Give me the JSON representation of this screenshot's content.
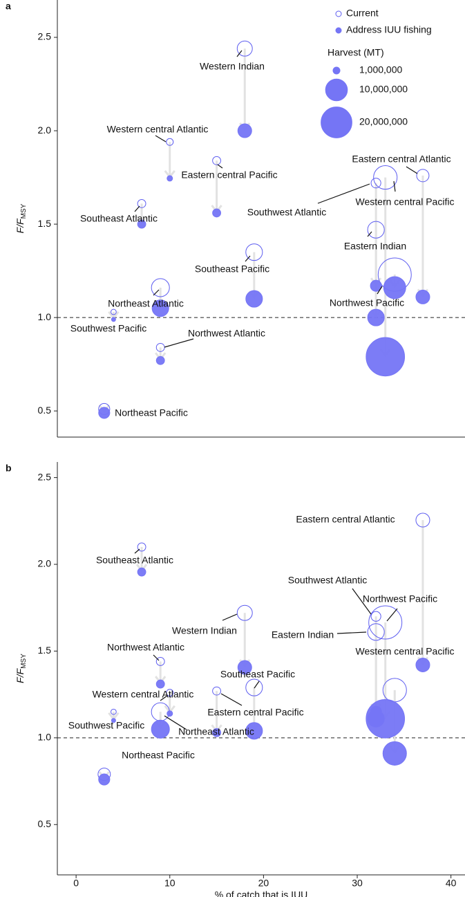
{
  "chart_data": [
    {
      "type": "scatter",
      "panel_label": "a",
      "ylabel": "F/F",
      "ylabel_sub": "MSY",
      "xlim": [
        -2,
        41.5
      ],
      "ylim": [
        0.36,
        2.7
      ],
      "yticks": [
        0.5,
        {
          "value": 1,
          "label": "1.0"
        },
        1.5,
        {
          "value": 2,
          "label": "2.0"
        },
        2.5
      ],
      "hline": 1,
      "point_labels": [
        "Western Indian",
        "Western central Atlantic",
        "Eastern central Pacific",
        "Southeast Atlantic",
        "Southwest Atlantic",
        "Eastern central Atlantic",
        "Western central Pacific",
        "Eastern Indian",
        "Southeast Pacific",
        "Northeast Atlantic",
        "Northwest Pacific",
        "Southwest Pacific",
        "Northwest Atlantic",
        "Northeast Pacific"
      ],
      "x": [
        18,
        10,
        15,
        7,
        32,
        37,
        33,
        32,
        19,
        9,
        34,
        4,
        9,
        3
      ],
      "series": [
        {
          "name": "Current",
          "color": "#5c5cf0",
          "filled": false,
          "values": [
            2.44,
            1.94,
            1.84,
            1.61,
            1.72,
            1.76,
            1.75,
            1.47,
            1.35,
            1.16,
            1.23,
            1.03,
            0.84,
            0.51
          ],
          "sizes": [
            4800000,
            1000000,
            1400000,
            1400000,
            2000000,
            3200000,
            11600000,
            5800000,
            5800000,
            6800000,
            23000000,
            600000,
            1400000,
            2600000
          ]
        },
        {
          "name": "Address IUU fishing",
          "color": "#7575f5",
          "filled": true,
          "values": [
            2.0,
            1.745,
            1.56,
            1.5,
            1.17,
            1.11,
            0.79,
            1.0,
            1.1,
            1.05,
            1.16,
            0.99,
            0.77,
            0.49
          ],
          "sizes": [
            4000000,
            640000,
            1400000,
            1400000,
            2600000,
            4000000,
            31000000,
            5800000,
            5800000,
            5800000,
            10200000,
            360000,
            1400000,
            2600000
          ]
        }
      ],
      "size_legend": {
        "title": "Harvest (MT)",
        "sizes": [
          {
            "value": 1000000,
            "label": "1,000,000"
          },
          {
            "value": 10000000,
            "label": "10,000,000"
          },
          {
            "value": 20000000,
            "label": "20,000,000"
          }
        ]
      }
    },
    {
      "type": "scatter",
      "panel_label": "b",
      "ylabel": "F/F",
      "ylabel_sub": "MSY",
      "xlabel": "% of catch that is IUU",
      "xlim": [
        -2,
        41.5
      ],
      "ylim": [
        0.21,
        2.59
      ],
      "xticks": [
        0,
        10,
        20,
        30,
        40
      ],
      "yticks": [
        0.5,
        {
          "value": 1,
          "label": "1.0"
        },
        1.5,
        {
          "value": 2,
          "label": "2.0"
        },
        2.5
      ],
      "hline": 1,
      "point_labels": [
        "Western Indian",
        "Western central Atlantic",
        "Eastern central Pacific",
        "Southeast Atlantic",
        "Southwest Atlantic",
        "Eastern central Atlantic",
        "Western central Pacific",
        "Eastern Indian",
        "Southeast Pacific",
        "Northeast Atlantic",
        "Northwest Pacific",
        "Southwest Pacific",
        "Northwest Atlantic",
        "Northeast Pacific"
      ],
      "x": [
        18,
        10,
        15,
        7,
        32,
        37,
        34,
        32,
        19,
        9,
        33,
        4,
        9,
        3
      ],
      "series": [
        {
          "color": "#5c5cf0",
          "filled": false,
          "values": [
            1.72,
            1.26,
            1.27,
            2.1,
            1.7,
            2.255,
            1.275,
            1.61,
            1.29,
            1.15,
            1.665,
            1.15,
            1.44,
            0.79
          ],
          "sizes": [
            4800000,
            1000000,
            1400000,
            1400000,
            2000000,
            4000000,
            11600000,
            5800000,
            5800000,
            6800000,
            23000000,
            600000,
            1400000,
            3200000
          ]
        },
        {
          "color": "#7575f5",
          "filled": true,
          "values": [
            1.406,
            1.14,
            1.03,
            1.956,
            1.15,
            1.42,
            0.91,
            1.11,
            1.04,
            1.05,
            1.11,
            1.1,
            1.31,
            0.76
          ],
          "sizes": [
            4000000,
            640000,
            1400000,
            1400000,
            2600000,
            4000000,
            11600000,
            5800000,
            5800000,
            6800000,
            31000000,
            360000,
            1400000,
            2600000
          ]
        }
      ]
    }
  ]
}
